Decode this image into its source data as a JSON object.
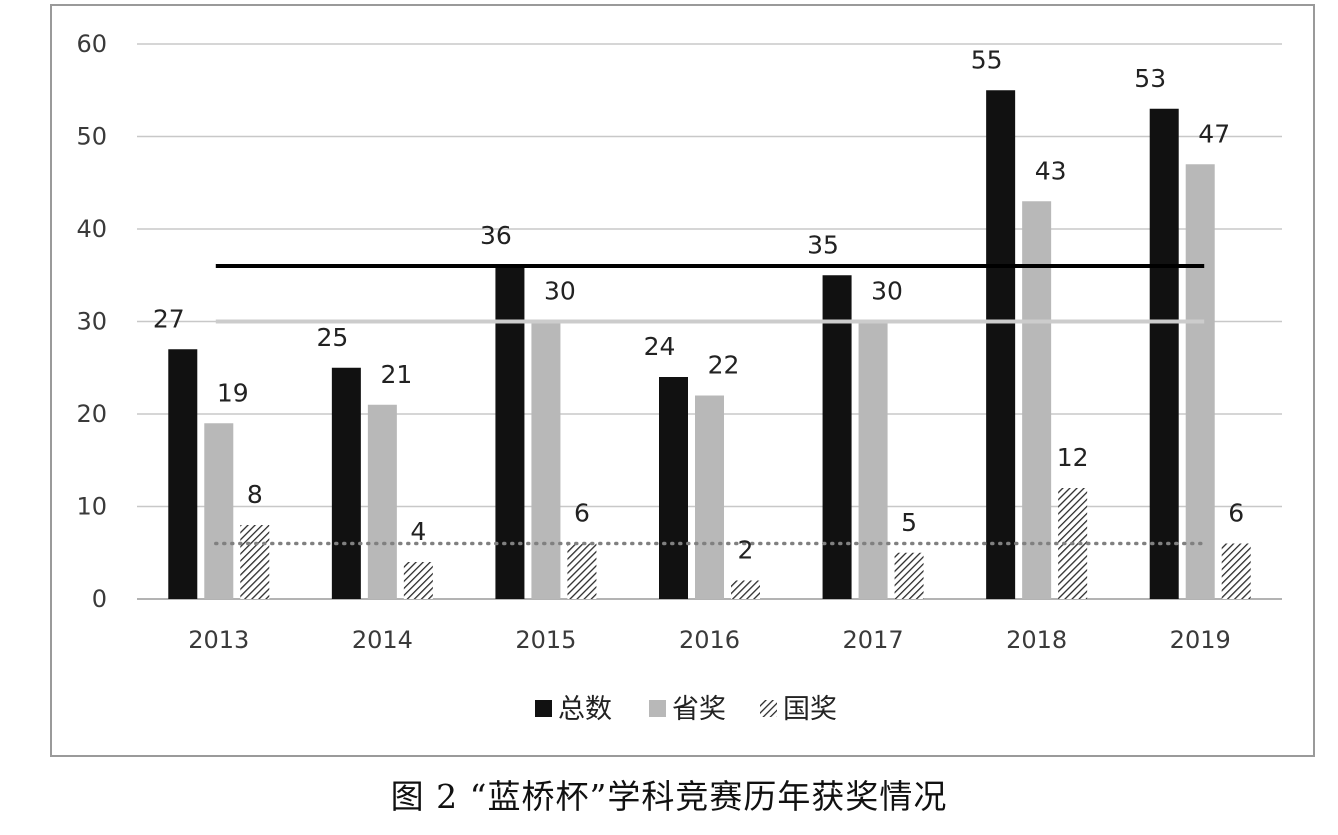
{
  "chart_data": {
    "type": "bar",
    "categories": [
      "2013",
      "2014",
      "2015",
      "2016",
      "2017",
      "2018",
      "2019"
    ],
    "series": [
      {
        "name": "总数",
        "values": [
          27,
          25,
          36,
          24,
          35,
          55,
          53
        ],
        "color": "#111111",
        "fill": "solid"
      },
      {
        "name": "省奖",
        "values": [
          19,
          21,
          30,
          22,
          30,
          43,
          47
        ],
        "color": "#b8b8b8",
        "fill": "solid"
      },
      {
        "name": "国奖",
        "values": [
          8,
          4,
          6,
          2,
          5,
          12,
          6
        ],
        "color": "#333333",
        "fill": "hatch"
      }
    ],
    "reference_lines": [
      {
        "value": 36,
        "color": "#000000",
        "style": "solid"
      },
      {
        "value": 30,
        "color": "#cccccc",
        "style": "solid"
      },
      {
        "value": 6,
        "color": "#808080",
        "style": "dotted"
      }
    ],
    "yticks": [
      "0",
      "10",
      "20",
      "30",
      "40",
      "50",
      "60"
    ],
    "ylim": [
      0,
      60
    ],
    "grid": true,
    "legend_position": "bottom-center",
    "title": "",
    "xlabel": "",
    "ylabel": ""
  },
  "caption": "图 2 “蓝桥杯”学科竞赛历年获奖情况"
}
